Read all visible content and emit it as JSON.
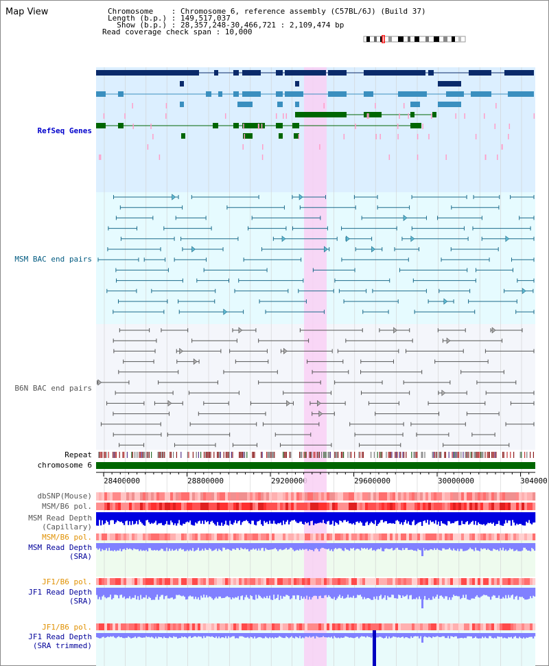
{
  "title": "Map View",
  "info": {
    "chromosome_key": "Chromosome",
    "chromosome_val": "Chromosome 6, reference assembly (C57BL/6J) (Build 37)",
    "length_key": "Length (b.p.)",
    "length_val": "149,517,037",
    "show_key": "Show (b.p.)",
    "show_val": "28,357,248-30,466,721 : 2,109,474 bp",
    "read_check": "Read coverage check span : 10,000"
  },
  "tracks": {
    "refseq": "RefSeq Genes",
    "msm_bac": "MSM BAC end pairs",
    "b6n_bac": "B6N BAC end pairs",
    "repeat": "Repeat",
    "chromosome": "chromosome 6",
    "dbsnp": "dbSNP(Mouse)",
    "msm_b6_pol_1": "MSM/B6 pol.",
    "msm_depth_cap": "MSM Read Depth\n(Capillary)",
    "msm_b6_pol_2": "MSM/B6 pol.",
    "msm_depth_sra": "MSM Read Depth\n(SRA)",
    "jf1_b6_pol_1": "JF1/B6 pol.",
    "jf1_depth_sra": "JF1 Read Depth\n(SRA)",
    "jf1_b6_pol_2": "JF1/B6 pol.",
    "jf1_depth_trim": "JF1 Read Depth\n(SRA trimmed)"
  },
  "axis": {
    "ticks": [
      "28400000",
      "28800000",
      "29200000",
      "29600000",
      "30000000",
      "304000"
    ]
  },
  "colors": {
    "refseq_bg": "#dcefff",
    "msm_bg": "#e6fbff",
    "b6n_bg": "#f4f6fb",
    "highlight": "#f9d0f5",
    "gene_dark": "#0a2a6a",
    "gene_mid": "#3a8fbf",
    "gene_green": "#006600",
    "chrom_green": "#006600",
    "depth_blue": "#0000e0",
    "depth_lilac": "#8080ff",
    "pol_red": "#ff4040"
  }
}
